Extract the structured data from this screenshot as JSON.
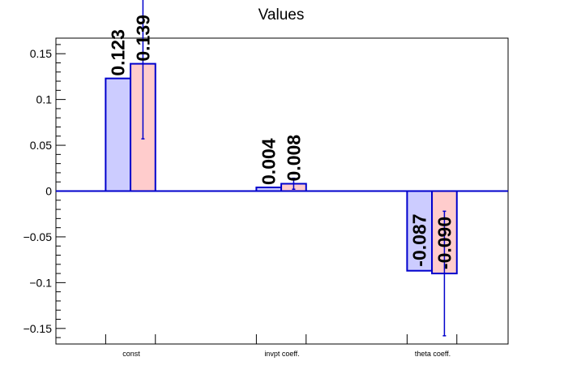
{
  "chart_data": {
    "type": "bar",
    "title": "Values",
    "categories": [
      "const",
      "invpt coeff.",
      "theta coeff."
    ],
    "ylim": [
      -0.167,
      0.167
    ],
    "yticks": [
      -0.15,
      -0.1,
      -0.05,
      0,
      0.05,
      0.1,
      0.15
    ],
    "ytick_labels": [
      "−0.15",
      "−0.1",
      "−0.05",
      "0",
      "0.05",
      "0.1",
      "0.15"
    ],
    "grid": false,
    "series": [
      {
        "values": [
          0.123,
          0.004,
          -0.087
        ],
        "labels": [
          "0.123",
          "0.004",
          "-0.087"
        ],
        "errors": [
          0,
          0,
          0
        ],
        "fill": "#ccccff",
        "stroke": "#0000cc"
      },
      {
        "values": [
          0.139,
          0.008,
          -0.09
        ],
        "labels": [
          "0.139",
          "0.008",
          "-0.090"
        ],
        "errors": [
          0.082,
          0.006,
          0.068
        ],
        "fill": "#ffcccc",
        "stroke": "#0000cc"
      }
    ],
    "baseline_color": "#0000cc"
  }
}
